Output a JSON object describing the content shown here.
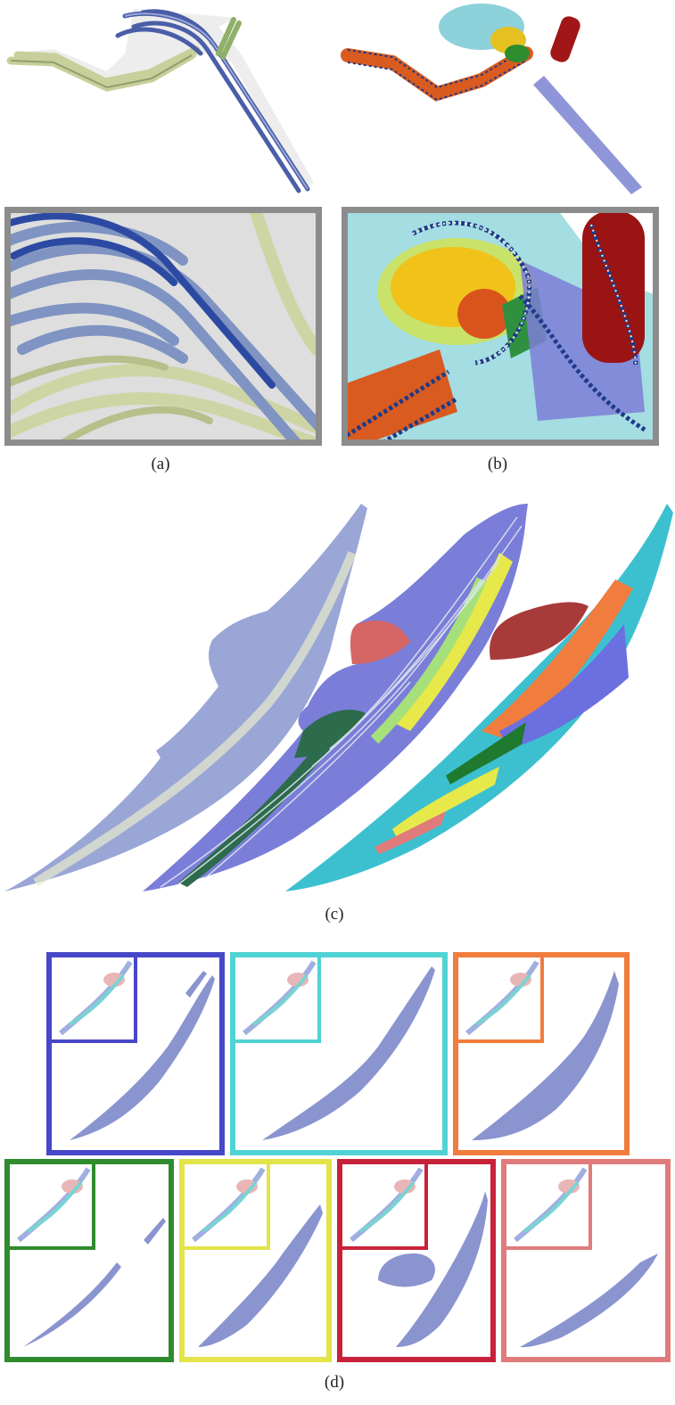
{
  "figure": {
    "caption_a": "(a)",
    "caption_b": "(b)",
    "caption_c": "(c)",
    "caption_d": "(d)"
  },
  "colors": {
    "frame_gray": "#8c8c8c",
    "cluster_blue": "#4747c9",
    "cluster_cyan": "#4fd3d3",
    "cluster_orange": "#f07c3d",
    "cluster_green": "#2e8b2e",
    "cluster_yellow": "#e3e34a",
    "cluster_red": "#c8223a",
    "cluster_pink": "#e07b7b",
    "surface_blue": "#8a94cf"
  },
  "clusters": [
    {
      "name": "blue",
      "color": "#4747c9"
    },
    {
      "name": "cyan",
      "color": "#4fd3d3"
    },
    {
      "name": "orange",
      "color": "#f07c3d"
    },
    {
      "name": "green",
      "color": "#2e8b2e"
    },
    {
      "name": "yellow",
      "color": "#e3e34a"
    },
    {
      "name": "red",
      "color": "#c8223a"
    },
    {
      "name": "pink",
      "color": "#e07b7b"
    }
  ]
}
